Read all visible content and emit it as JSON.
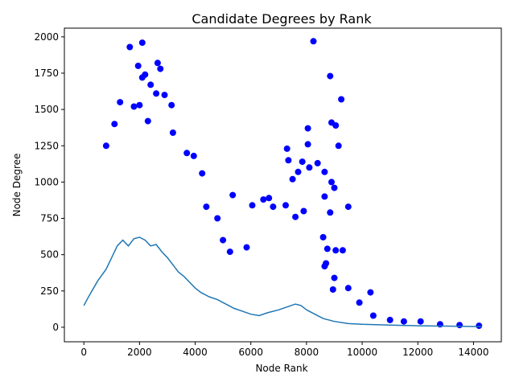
{
  "chart_data": {
    "type": "scatter",
    "title": "Candidate Degrees by Rank",
    "xlabel": "Node Rank",
    "ylabel": "Node Degree",
    "xlim": [
      -700,
      15000
    ],
    "ylim": [
      -100,
      2060
    ],
    "x_ticks": [
      0,
      2000,
      4000,
      6000,
      8000,
      10000,
      12000,
      14000
    ],
    "y_ticks": [
      0,
      250,
      500,
      750,
      1000,
      1250,
      1500,
      1750,
      2000
    ],
    "grid": false,
    "legend": "none",
    "colors": {
      "points": "#0000ff",
      "line": "#1f77b4"
    },
    "series": [
      {
        "type": "scatter",
        "values": [
          [
            1650,
            1930
          ],
          [
            2100,
            1960
          ],
          [
            8250,
            1970
          ],
          [
            2650,
            1820
          ],
          [
            1950,
            1800
          ],
          [
            2750,
            1780
          ],
          [
            8850,
            1730
          ],
          [
            2100,
            1720
          ],
          [
            2200,
            1740
          ],
          [
            2400,
            1670
          ],
          [
            9250,
            1570
          ],
          [
            2900,
            1600
          ],
          [
            1300,
            1550
          ],
          [
            1800,
            1520
          ],
          [
            2000,
            1530
          ],
          [
            2600,
            1610
          ],
          [
            3150,
            1530
          ],
          [
            8900,
            1410
          ],
          [
            9050,
            1390
          ],
          [
            8050,
            1370
          ],
          [
            3200,
            1340
          ],
          [
            1100,
            1400
          ],
          [
            2300,
            1420
          ],
          [
            3700,
            1200
          ],
          [
            7300,
            1230
          ],
          [
            8050,
            1260
          ],
          [
            9150,
            1250
          ],
          [
            800,
            1250
          ],
          [
            3950,
            1180
          ],
          [
            7350,
            1150
          ],
          [
            7850,
            1140
          ],
          [
            8100,
            1100
          ],
          [
            8400,
            1130
          ],
          [
            4250,
            1060
          ],
          [
            7700,
            1070
          ],
          [
            8650,
            1070
          ],
          [
            7500,
            1020
          ],
          [
            8900,
            1000
          ],
          [
            5350,
            910
          ],
          [
            6450,
            880
          ],
          [
            6650,
            890
          ],
          [
            8650,
            900
          ],
          [
            9000,
            960
          ],
          [
            9500,
            830
          ],
          [
            6050,
            840
          ],
          [
            7250,
            840
          ],
          [
            7900,
            800
          ],
          [
            8850,
            790
          ],
          [
            4400,
            830
          ],
          [
            4800,
            750
          ],
          [
            5000,
            600
          ],
          [
            5250,
            520
          ],
          [
            5850,
            550
          ],
          [
            6800,
            830
          ],
          [
            7600,
            760
          ],
          [
            8600,
            620
          ],
          [
            8750,
            540
          ],
          [
            9050,
            530
          ],
          [
            9300,
            530
          ],
          [
            8700,
            440
          ],
          [
            8650,
            420
          ],
          [
            9000,
            340
          ],
          [
            8950,
            260
          ],
          [
            9500,
            270
          ],
          [
            9900,
            170
          ],
          [
            10300,
            240
          ],
          [
            10400,
            80
          ],
          [
            11000,
            50
          ],
          [
            11500,
            40
          ],
          [
            12100,
            40
          ],
          [
            12800,
            20
          ],
          [
            13500,
            15
          ],
          [
            14200,
            10
          ]
        ]
      },
      {
        "type": "line",
        "values": [
          [
            0,
            150
          ],
          [
            200,
            220
          ],
          [
            500,
            320
          ],
          [
            800,
            400
          ],
          [
            1000,
            480
          ],
          [
            1200,
            560
          ],
          [
            1400,
            600
          ],
          [
            1600,
            560
          ],
          [
            1800,
            610
          ],
          [
            2000,
            620
          ],
          [
            2200,
            600
          ],
          [
            2400,
            560
          ],
          [
            2600,
            570
          ],
          [
            2800,
            520
          ],
          [
            3000,
            480
          ],
          [
            3200,
            430
          ],
          [
            3400,
            380
          ],
          [
            3600,
            350
          ],
          [
            3800,
            310
          ],
          [
            4000,
            270
          ],
          [
            4200,
            240
          ],
          [
            4500,
            210
          ],
          [
            4800,
            190
          ],
          [
            5100,
            160
          ],
          [
            5400,
            130
          ],
          [
            5700,
            110
          ],
          [
            6000,
            90
          ],
          [
            6300,
            80
          ],
          [
            6600,
            100
          ],
          [
            7000,
            120
          ],
          [
            7300,
            140
          ],
          [
            7600,
            160
          ],
          [
            7800,
            150
          ],
          [
            8000,
            120
          ],
          [
            8300,
            90
          ],
          [
            8600,
            60
          ],
          [
            9000,
            40
          ],
          [
            9500,
            25
          ],
          [
            10000,
            20
          ],
          [
            11000,
            15
          ],
          [
            12000,
            10
          ],
          [
            13000,
            8
          ],
          [
            14000,
            5
          ],
          [
            14300,
            5
          ]
        ]
      }
    ]
  }
}
